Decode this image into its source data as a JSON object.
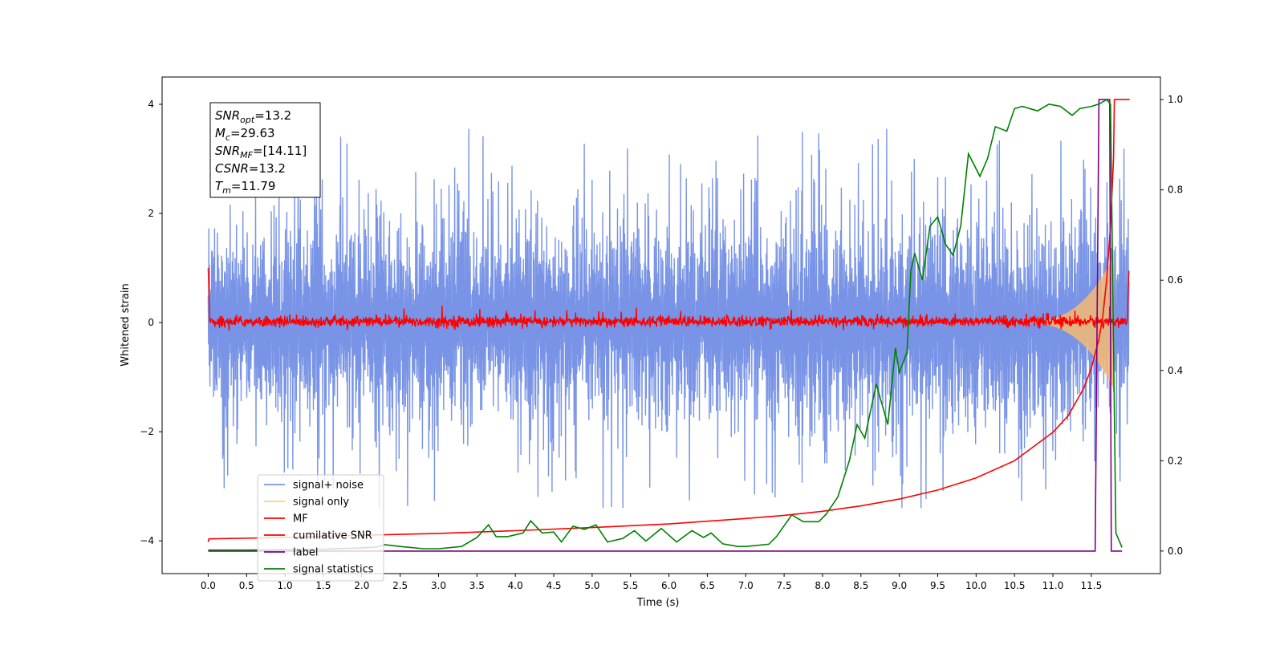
{
  "chart_data": {
    "type": "line",
    "xlabel": "Time (s)",
    "ylabel_left": "Whitened strain",
    "ylabel_right": "",
    "xlim": [
      -0.6,
      12.4
    ],
    "ylim_left": [
      -4.6,
      4.5
    ],
    "ylim_right": [
      -0.05,
      1.05
    ],
    "x_ticks": [
      "0.0",
      "0.5",
      "1.0",
      "1.5",
      "2.0",
      "2.5",
      "3.0",
      "3.5",
      "4.0",
      "4.5",
      "5.0",
      "5.5",
      "6.0",
      "6.5",
      "7.0",
      "7.5",
      "8.0",
      "8.5",
      "9.0",
      "9.5",
      "10.0",
      "10.5",
      "11.0",
      "11.5"
    ],
    "y_ticks_left": [
      "−4",
      "−2",
      "0",
      "2",
      "4"
    ],
    "y_ticks_right": [
      "0.0",
      "0.2",
      "0.4",
      "0.6",
      "0.8",
      "1.0"
    ],
    "grid": false,
    "legend_position": "lower-left",
    "legend": [
      {
        "label": "signal+ noise",
        "color": "#7994e6"
      },
      {
        "label": "signal only",
        "color": "#ffd27f"
      },
      {
        "label": "MF",
        "color": "#ff0000"
      },
      {
        "label": "cumilative SNR",
        "color": "#ff0000"
      },
      {
        "label": "label",
        "color": "#800080"
      },
      {
        "label": "signal statistics",
        "color": "#008000"
      }
    ],
    "annotation": {
      "lines": [
        {
          "sym": "SNR",
          "sub": "opt",
          "value": "=13.2"
        },
        {
          "sym": "M",
          "sub": "c",
          "value": "=29.63"
        },
        {
          "sym": "SNR",
          "sub": "MF",
          "value": "=[14.11]"
        },
        {
          "sym": "CSNR",
          "sub": "",
          "value": "=13.2"
        },
        {
          "sym": "T",
          "sub": "m",
          "value": "=11.79"
        }
      ]
    },
    "series": [
      {
        "name": "signal+ noise",
        "axis": "left",
        "color": "#7994e6",
        "style": "noise",
        "x_range": [
          0.0,
          11.99
        ],
        "typical_amplitude": [
          -1.8,
          2.0
        ],
        "peak_max": 3.55,
        "peak_min": -3.4
      },
      {
        "name": "signal only",
        "axis": "left",
        "color": "#f5b971",
        "style": "chirp",
        "x_range": [
          10.5,
          11.79
        ],
        "peak_amplitude": 1.2
      },
      {
        "name": "MF",
        "axis": "left",
        "color": "#ff0000",
        "style": "mf_noise",
        "x_range": [
          0.0,
          11.99
        ],
        "typical_amplitude": [
          -0.1,
          0.15
        ],
        "start_value": 1.0,
        "end_value": 0.95
      },
      {
        "name": "cumilative SNR",
        "axis": "right",
        "color": "#ff0000",
        "points": [
          [
            0.0,
            0.02
          ],
          [
            0.01,
            0.027
          ],
          [
            1.0,
            0.03
          ],
          [
            2.0,
            0.035
          ],
          [
            3.0,
            0.039
          ],
          [
            4.0,
            0.045
          ],
          [
            5.0,
            0.052
          ],
          [
            6.0,
            0.06
          ],
          [
            7.0,
            0.072
          ],
          [
            7.5,
            0.079
          ],
          [
            8.0,
            0.088
          ],
          [
            8.5,
            0.1
          ],
          [
            9.0,
            0.115
          ],
          [
            9.5,
            0.135
          ],
          [
            10.0,
            0.162
          ],
          [
            10.5,
            0.2
          ],
          [
            11.0,
            0.263
          ],
          [
            11.2,
            0.3
          ],
          [
            11.4,
            0.36
          ],
          [
            11.5,
            0.405
          ],
          [
            11.6,
            0.47
          ],
          [
            11.65,
            0.52
          ],
          [
            11.7,
            0.6
          ],
          [
            11.75,
            0.72
          ],
          [
            11.79,
            0.87
          ],
          [
            11.8,
            1.0
          ],
          [
            12.0,
            1.0
          ]
        ]
      },
      {
        "name": "label",
        "axis": "right",
        "color": "#800080",
        "points": [
          [
            0.0,
            0.0
          ],
          [
            11.55,
            0.0
          ],
          [
            11.6,
            1.0
          ],
          [
            11.74,
            1.0
          ],
          [
            11.76,
            0.0
          ],
          [
            11.9,
            0.0
          ]
        ]
      },
      {
        "name": "signal statistics",
        "axis": "right",
        "color": "#008000",
        "points": [
          [
            0.0,
            0.002
          ],
          [
            0.5,
            0.002
          ],
          [
            1.0,
            0.003
          ],
          [
            1.5,
            0.004
          ],
          [
            2.0,
            0.007
          ],
          [
            2.2,
            0.009
          ],
          [
            2.3,
            0.014
          ],
          [
            2.5,
            0.01
          ],
          [
            2.8,
            0.005
          ],
          [
            3.0,
            0.005
          ],
          [
            3.3,
            0.01
          ],
          [
            3.5,
            0.03
          ],
          [
            3.65,
            0.058
          ],
          [
            3.75,
            0.032
          ],
          [
            3.9,
            0.032
          ],
          [
            4.1,
            0.04
          ],
          [
            4.2,
            0.067
          ],
          [
            4.35,
            0.04
          ],
          [
            4.5,
            0.042
          ],
          [
            4.6,
            0.02
          ],
          [
            4.75,
            0.055
          ],
          [
            4.9,
            0.048
          ],
          [
            5.05,
            0.058
          ],
          [
            5.2,
            0.02
          ],
          [
            5.4,
            0.028
          ],
          [
            5.55,
            0.045
          ],
          [
            5.7,
            0.022
          ],
          [
            5.9,
            0.05
          ],
          [
            6.1,
            0.02
          ],
          [
            6.3,
            0.045
          ],
          [
            6.45,
            0.03
          ],
          [
            6.55,
            0.04
          ],
          [
            6.7,
            0.016
          ],
          [
            6.9,
            0.01
          ],
          [
            7.0,
            0.01
          ],
          [
            7.3,
            0.015
          ],
          [
            7.4,
            0.032
          ],
          [
            7.6,
            0.08
          ],
          [
            7.75,
            0.065
          ],
          [
            7.95,
            0.065
          ],
          [
            8.05,
            0.082
          ],
          [
            8.2,
            0.12
          ],
          [
            8.35,
            0.2
          ],
          [
            8.45,
            0.28
          ],
          [
            8.55,
            0.25
          ],
          [
            8.7,
            0.37
          ],
          [
            8.85,
            0.28
          ],
          [
            8.95,
            0.45
          ],
          [
            9.0,
            0.395
          ],
          [
            9.1,
            0.44
          ],
          [
            9.15,
            0.62
          ],
          [
            9.2,
            0.66
          ],
          [
            9.3,
            0.6
          ],
          [
            9.4,
            0.72
          ],
          [
            9.5,
            0.74
          ],
          [
            9.6,
            0.68
          ],
          [
            9.7,
            0.655
          ],
          [
            9.8,
            0.72
          ],
          [
            9.9,
            0.88
          ],
          [
            10.05,
            0.83
          ],
          [
            10.15,
            0.87
          ],
          [
            10.25,
            0.94
          ],
          [
            10.4,
            0.93
          ],
          [
            10.5,
            0.98
          ],
          [
            10.6,
            0.985
          ],
          [
            10.8,
            0.975
          ],
          [
            10.95,
            0.99
          ],
          [
            11.1,
            0.985
          ],
          [
            11.25,
            0.965
          ],
          [
            11.35,
            0.98
          ],
          [
            11.5,
            0.985
          ],
          [
            11.6,
            0.99
          ],
          [
            11.7,
            1.0
          ],
          [
            11.75,
            0.99
          ],
          [
            11.82,
            0.04
          ],
          [
            11.9,
            0.008
          ]
        ]
      }
    ]
  }
}
